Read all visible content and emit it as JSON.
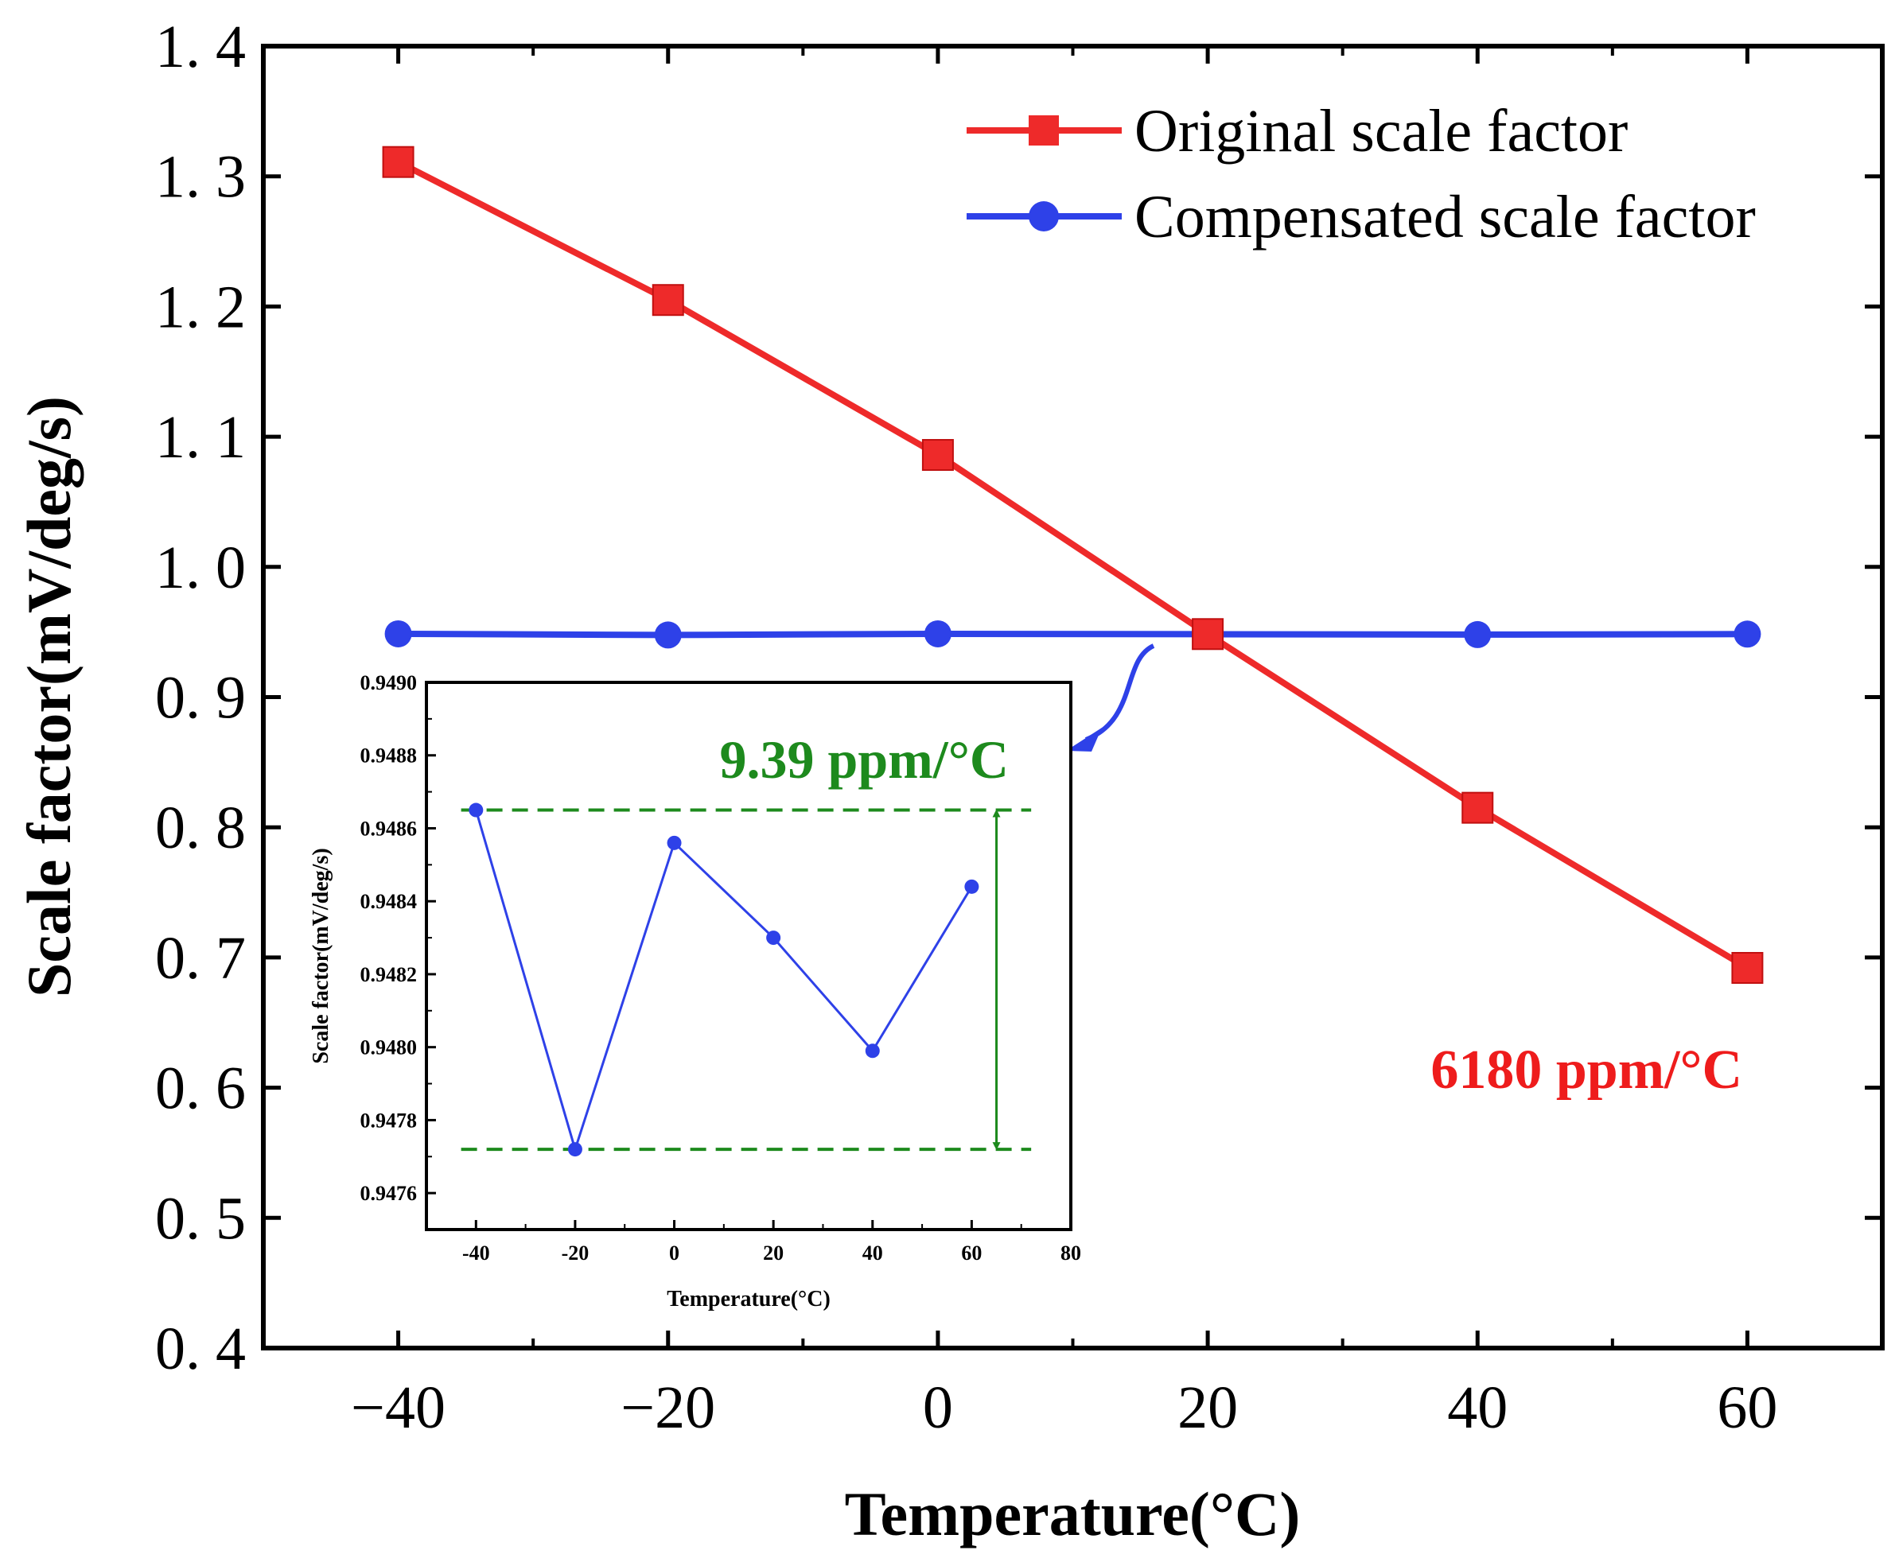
{
  "colors": {
    "original": "#ee2a2a",
    "compensated": "#2e41e8",
    "inset_line": "#2e41e8",
    "annot_green": "#1d8a1d",
    "annot_red": "#ee1c1c",
    "axis": "#000000"
  },
  "chart_data": [
    {
      "type": "line",
      "xlabel": "Temperature(°C)",
      "ylabel": "Scale factor(mV/deg/s)",
      "xlim": [
        -50,
        70
      ],
      "ylim": [
        0.4,
        1.4
      ],
      "xticks": [
        -40,
        -20,
        0,
        20,
        40,
        60
      ],
      "xtick_labels": [
        "−40",
        "−20",
        "0",
        "20",
        "40",
        "60"
      ],
      "yticks": [
        0.4,
        0.5,
        0.6,
        0.7,
        0.8,
        0.9,
        1.0,
        1.1,
        1.2,
        1.3,
        1.4
      ],
      "ytick_labels": [
        "0. 4",
        "0. 5",
        "0. 6",
        "0. 7",
        "0. 8",
        "0. 9",
        "1. 0",
        "1. 1",
        "1. 2",
        "1. 3",
        "1. 4"
      ],
      "legend_position": "top-right",
      "series": [
        {
          "name": "Original scale factor",
          "marker": "square",
          "x": [
            -40,
            -20,
            0,
            20,
            40,
            60
          ],
          "y": [
            1.311,
            1.205,
            1.086,
            0.9484,
            0.815,
            0.692
          ]
        },
        {
          "name": "Compensated scale factor",
          "marker": "circle",
          "x": [
            -40,
            -20,
            0,
            20,
            40,
            60
          ],
          "y": [
            0.9486,
            0.9477,
            0.9486,
            0.9483,
            0.948,
            0.9484
          ]
        }
      ],
      "annotations": [
        {
          "text": "6180 ppm/°C",
          "series": "Original scale factor"
        }
      ]
    },
    {
      "type": "line",
      "role": "inset",
      "xlabel": "Temperature(°C)",
      "ylabel": "Scale factor(mV/deg/s)",
      "xlim": [
        -50,
        80
      ],
      "ylim": [
        0.9475,
        0.949
      ],
      "xticks": [
        -40,
        -20,
        0,
        20,
        40,
        60,
        80
      ],
      "xtick_labels": [
        "-40",
        "-20",
        "0",
        "20",
        "40",
        "60",
        "80"
      ],
      "yticks": [
        0.9476,
        0.9478,
        0.948,
        0.9482,
        0.9484,
        0.9486,
        0.9488,
        0.949
      ],
      "ytick_labels": [
        "0.9476",
        "0.9478",
        "0.9480",
        "0.9482",
        "0.9484",
        "0.9486",
        "0.9488",
        "0.9490"
      ],
      "series": [
        {
          "name": "Compensated scale factor",
          "x": [
            -40,
            -20,
            0,
            20,
            40,
            60
          ],
          "y": [
            0.94865,
            0.94772,
            0.94856,
            0.9483,
            0.94799,
            0.94844
          ]
        }
      ],
      "range_lines": {
        "upper": 0.94865,
        "lower": 0.94772,
        "x_from": -43,
        "x_to": 72,
        "arrow_x": 65
      },
      "annotations": [
        {
          "text": "9.39 ppm/°C",
          "series": "Compensated scale factor"
        }
      ]
    }
  ]
}
